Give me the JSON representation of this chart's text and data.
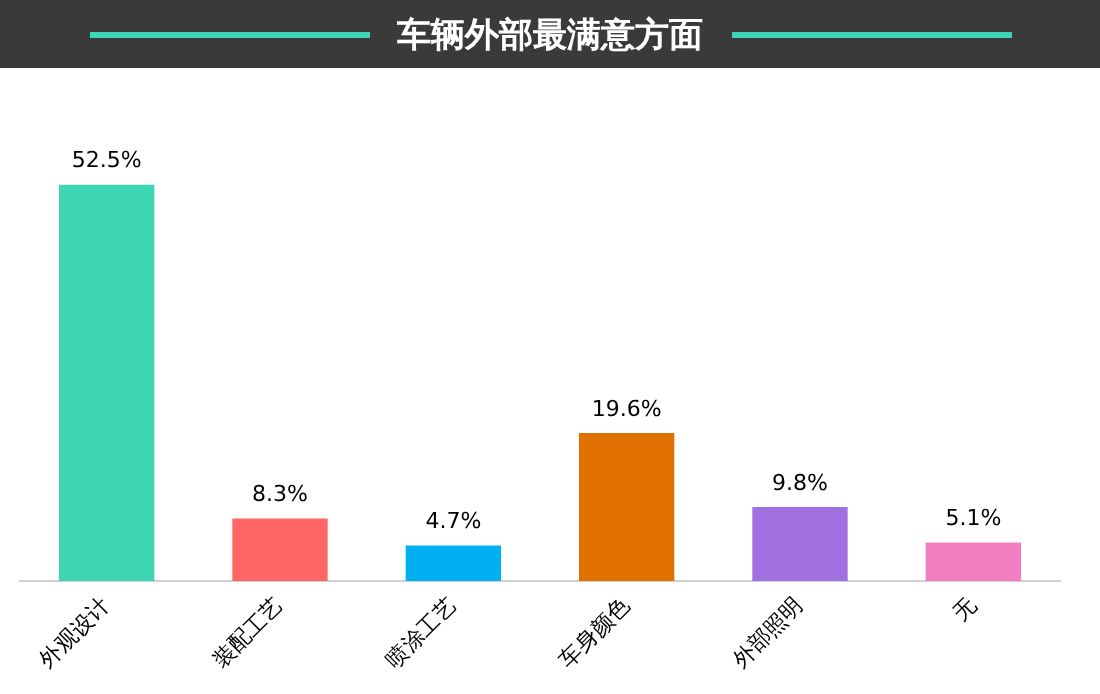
{
  "chart_data": {
    "type": "bar",
    "title": "车辆外部最满意方面",
    "categories": [
      "外观设计",
      "装配工艺",
      "喷涂工艺",
      "车身颜色",
      "外部照明",
      "无"
    ],
    "values": [
      52.5,
      8.3,
      4.7,
      19.6,
      9.8,
      5.1
    ],
    "value_labels": [
      "52.5%",
      "8.3%",
      "4.7%",
      "19.6%",
      "9.8%",
      "5.1%"
    ],
    "colors": [
      "#3dd6b5",
      "#ff6666",
      "#00b0f0",
      "#e07000",
      "#a070e0",
      "#f07ec0"
    ],
    "grid": false,
    "legend": false
  }
}
